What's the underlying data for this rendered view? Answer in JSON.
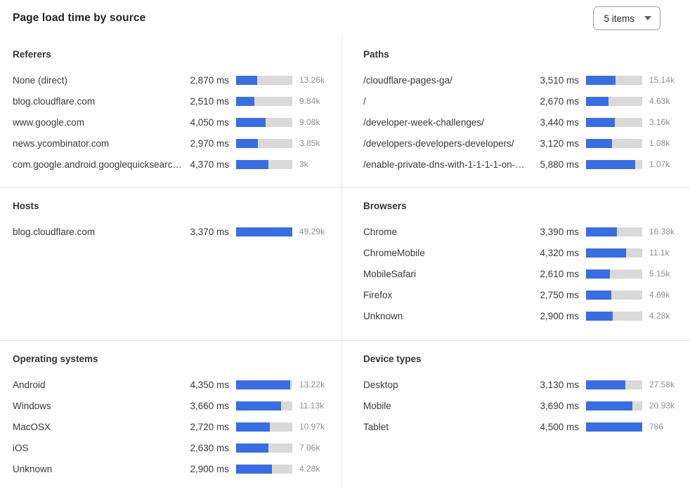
{
  "header": {
    "title": "Page load time by source",
    "items_select": {
      "value": "5 items"
    }
  },
  "colors": {
    "bar_fill": "#3a6de0",
    "bar_track": "#d9d9d9"
  },
  "chart_data": [
    {
      "type": "bar",
      "orientation": "horizontal",
      "title": "Referers",
      "slug": "referers",
      "value_unit": "ms",
      "rows": [
        {
          "label": "None (direct)",
          "ms": 2870,
          "ms_display": "2,870 ms",
          "count_display": "13.26k",
          "bar_pct": 38
        },
        {
          "label": "blog.cloudflare.com",
          "ms": 2510,
          "ms_display": "2,510 ms",
          "count_display": "9.84k",
          "bar_pct": 33
        },
        {
          "label": "www.google.com",
          "ms": 4050,
          "ms_display": "4,050 ms",
          "count_display": "9.08k",
          "bar_pct": 53
        },
        {
          "label": "news.ycombinator.com",
          "ms": 2970,
          "ms_display": "2,970 ms",
          "count_display": "3.85k",
          "bar_pct": 39
        },
        {
          "label": "com.google.android.googlequicksearc…",
          "ms": 4370,
          "ms_display": "4,370 ms",
          "count_display": "3k",
          "bar_pct": 57
        }
      ]
    },
    {
      "type": "bar",
      "orientation": "horizontal",
      "title": "Paths",
      "slug": "paths",
      "value_unit": "ms",
      "rows": [
        {
          "label": "/cloudflare-pages-ga/",
          "ms": 3510,
          "ms_display": "3,510 ms",
          "count_display": "15.14k",
          "bar_pct": 52
        },
        {
          "label": "/",
          "ms": 2670,
          "ms_display": "2,670 ms",
          "count_display": "4.63k",
          "bar_pct": 40
        },
        {
          "label": "/developer-week-challenges/",
          "ms": 3440,
          "ms_display": "3,440 ms",
          "count_display": "3.16k",
          "bar_pct": 51
        },
        {
          "label": "/developers-developers-developers/",
          "ms": 3120,
          "ms_display": "3,120 ms",
          "count_display": "1.08k",
          "bar_pct": 46
        },
        {
          "label": "/enable-private-dns-with-1-1-1-1-on-…",
          "ms": 5880,
          "ms_display": "5,880 ms",
          "count_display": "1.07k",
          "bar_pct": 88
        }
      ]
    },
    {
      "type": "bar",
      "orientation": "horizontal",
      "title": "Hosts",
      "slug": "hosts",
      "value_unit": "ms",
      "rows": [
        {
          "label": "blog.cloudflare.com",
          "ms": 3370,
          "ms_display": "3,370 ms",
          "count_display": "49.29k",
          "bar_pct": 100
        }
      ]
    },
    {
      "type": "bar",
      "orientation": "horizontal",
      "title": "Browsers",
      "slug": "browsers",
      "value_unit": "ms",
      "rows": [
        {
          "label": "Chrome",
          "ms": 3390,
          "ms_display": "3,390 ms",
          "count_display": "16.38k",
          "bar_pct": 55
        },
        {
          "label": "ChromeMobile",
          "ms": 4320,
          "ms_display": "4,320 ms",
          "count_display": "11.1k",
          "bar_pct": 71
        },
        {
          "label": "MobileSafari",
          "ms": 2610,
          "ms_display": "2,610 ms",
          "count_display": "5.15k",
          "bar_pct": 43
        },
        {
          "label": "Firefox",
          "ms": 2750,
          "ms_display": "2,750 ms",
          "count_display": "4.69k",
          "bar_pct": 45
        },
        {
          "label": "Unknown",
          "ms": 2900,
          "ms_display": "2,900 ms",
          "count_display": "4.28k",
          "bar_pct": 48
        }
      ]
    },
    {
      "type": "bar",
      "orientation": "horizontal",
      "title": "Operating systems",
      "slug": "operating-systems",
      "value_unit": "ms",
      "rows": [
        {
          "label": "Android",
          "ms": 4350,
          "ms_display": "4,350 ms",
          "count_display": "13.22k",
          "bar_pct": 96
        },
        {
          "label": "Windows",
          "ms": 3660,
          "ms_display": "3,660 ms",
          "count_display": "11.13k",
          "bar_pct": 80
        },
        {
          "label": "MacOSX",
          "ms": 2720,
          "ms_display": "2,720 ms",
          "count_display": "10.97k",
          "bar_pct": 60
        },
        {
          "label": "iOS",
          "ms": 2630,
          "ms_display": "2,630 ms",
          "count_display": "7.06k",
          "bar_pct": 58
        },
        {
          "label": "Unknown",
          "ms": 2900,
          "ms_display": "2,900 ms",
          "count_display": "4.28k",
          "bar_pct": 64
        }
      ]
    },
    {
      "type": "bar",
      "orientation": "horizontal",
      "title": "Device types",
      "slug": "device-types",
      "value_unit": "ms",
      "rows": [
        {
          "label": "Desktop",
          "ms": 3130,
          "ms_display": "3,130 ms",
          "count_display": "27.58k",
          "bar_pct": 70
        },
        {
          "label": "Mobile",
          "ms": 3690,
          "ms_display": "3,690 ms",
          "count_display": "20.93k",
          "bar_pct": 82
        },
        {
          "label": "Tablet",
          "ms": 4500,
          "ms_display": "4,500 ms",
          "count_display": "786",
          "bar_pct": 100
        }
      ]
    }
  ]
}
